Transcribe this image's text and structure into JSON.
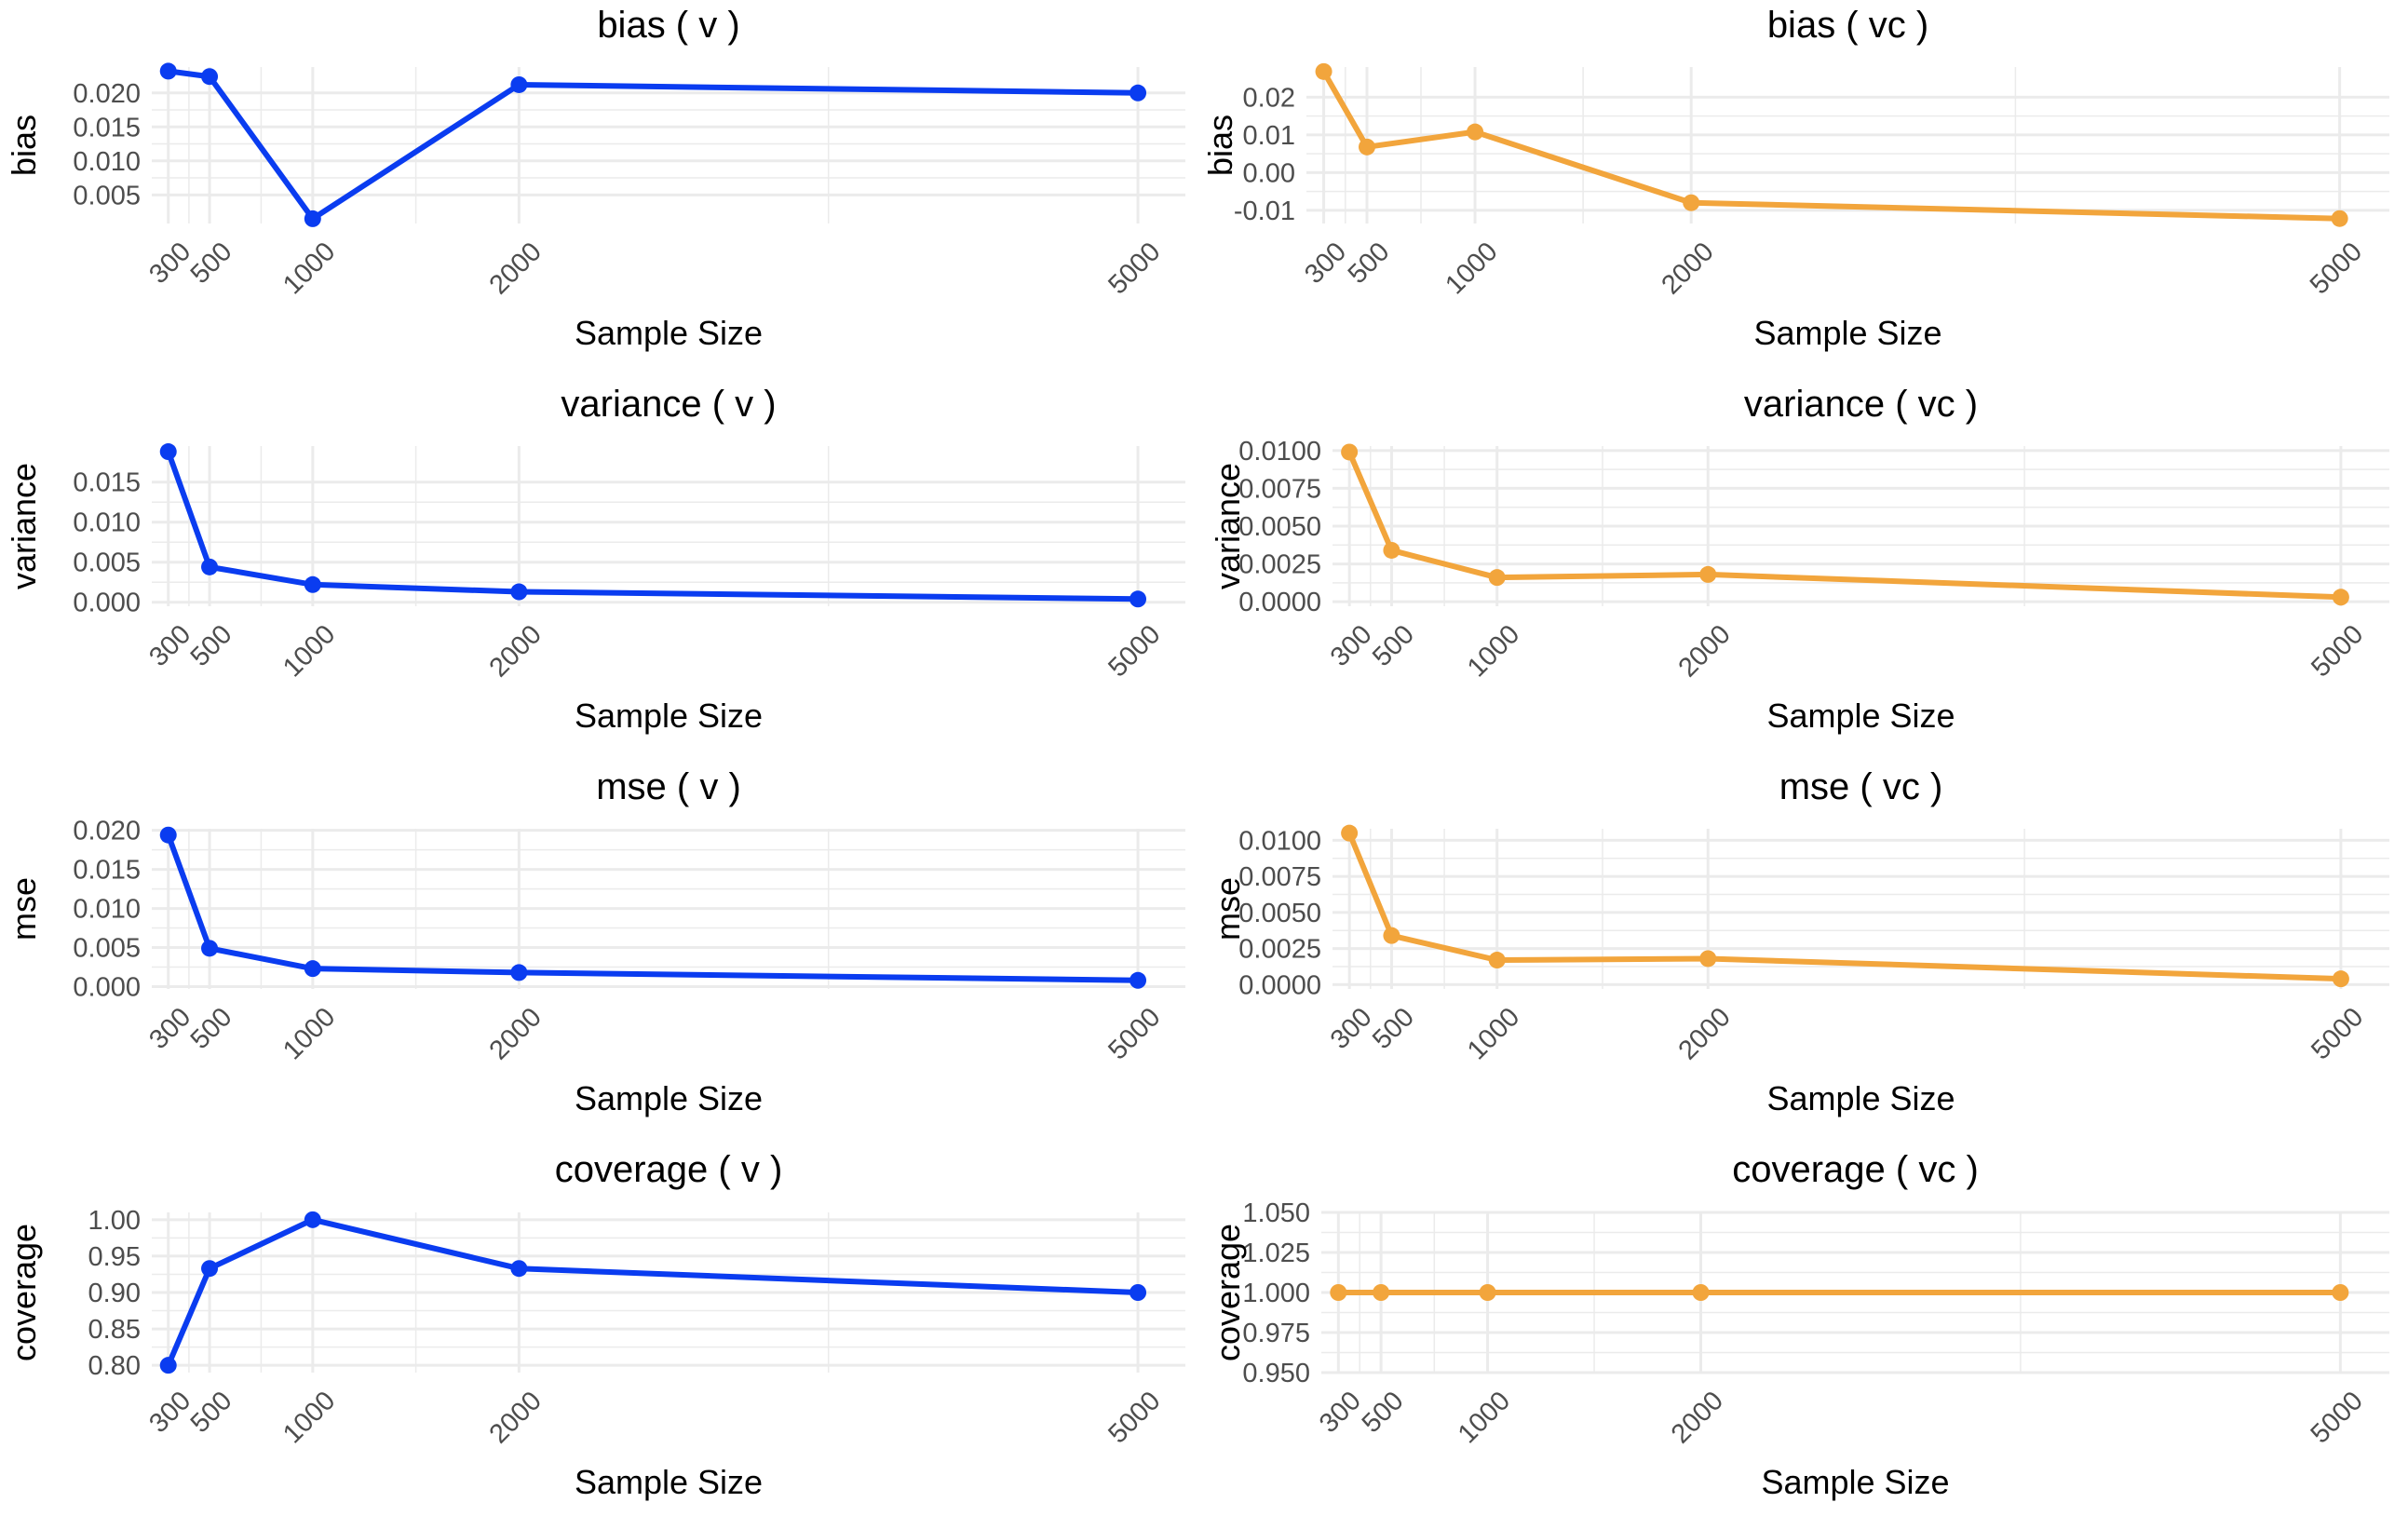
{
  "figure": {
    "x_label": "Sample Size",
    "colors": {
      "v": "#0a3cf0",
      "vc": "#f2a53c",
      "grid": "#ebebeb",
      "text": "#000000",
      "tick": "#4d4d4d"
    }
  },
  "chart_data": [
    {
      "id": "bias-v",
      "type": "line",
      "title": "bias ( v )",
      "xlabel": "Sample Size",
      "ylabel": "bias",
      "color_key": "v",
      "x": [
        300,
        500,
        1000,
        2000,
        5000
      ],
      "y": [
        0.0232,
        0.0224,
        0.0015,
        0.0212,
        0.02
      ],
      "ylim": [
        0.0008,
        0.0238
      ],
      "yticks": [
        0.005,
        0.01,
        0.015,
        0.02
      ],
      "ytick_labels": [
        "0.005",
        "0.010",
        "0.015",
        "0.020"
      ],
      "xticks": [
        300,
        500,
        1000,
        2000,
        5000
      ],
      "xtick_labels": [
        "300",
        "500",
        "1000",
        "2000",
        "5000"
      ],
      "xlim": [
        220,
        5230
      ],
      "grid": true
    },
    {
      "id": "bias-vc",
      "type": "line",
      "title": "bias ( vc )",
      "xlabel": "Sample Size",
      "ylabel": "bias",
      "color_key": "vc",
      "x": [
        300,
        500,
        1000,
        2000,
        5000
      ],
      "y": [
        0.0268,
        0.0068,
        0.0108,
        -0.008,
        -0.0122
      ],
      "ylim": [
        -0.0135,
        0.028
      ],
      "yticks": [
        -0.01,
        0.0,
        0.01,
        0.02
      ],
      "ytick_labels": [
        "-0.01",
        "0.00",
        "0.01",
        "0.02"
      ],
      "xticks": [
        300,
        500,
        1000,
        2000,
        5000
      ],
      "xtick_labels": [
        "300",
        "500",
        "1000",
        "2000",
        "5000"
      ],
      "xlim": [
        220,
        5230
      ],
      "grid": true
    },
    {
      "id": "variance-v",
      "type": "line",
      "title": "variance ( v )",
      "xlabel": "Sample Size",
      "ylabel": "variance",
      "color_key": "v",
      "x": [
        300,
        500,
        1000,
        2000,
        5000
      ],
      "y": [
        0.0188,
        0.0044,
        0.0022,
        0.0013,
        0.0004
      ],
      "ylim": [
        -0.0005,
        0.0195
      ],
      "yticks": [
        0.0,
        0.005,
        0.01,
        0.015
      ],
      "ytick_labels": [
        "0.000",
        "0.005",
        "0.010",
        "0.015"
      ],
      "xticks": [
        300,
        500,
        1000,
        2000,
        5000
      ],
      "xtick_labels": [
        "300",
        "500",
        "1000",
        "2000",
        "5000"
      ],
      "xlim": [
        220,
        5230
      ],
      "grid": true
    },
    {
      "id": "variance-vc",
      "type": "line",
      "title": "variance ( vc )",
      "xlabel": "Sample Size",
      "ylabel": "variance",
      "color_key": "vc",
      "x": [
        300,
        500,
        1000,
        2000,
        5000
      ],
      "y": [
        0.0099,
        0.0034,
        0.0016,
        0.0018,
        0.0003
      ],
      "ylim": [
        -0.0003,
        0.0103
      ],
      "yticks": [
        0.0,
        0.0025,
        0.005,
        0.0075,
        0.01
      ],
      "ytick_labels": [
        "0.0000",
        "0.0025",
        "0.0050",
        "0.0075",
        "0.0100"
      ],
      "xticks": [
        300,
        500,
        1000,
        2000,
        5000
      ],
      "xtick_labels": [
        "300",
        "500",
        "1000",
        "2000",
        "5000"
      ],
      "xlim": [
        220,
        5230
      ],
      "grid": true
    },
    {
      "id": "mse-v",
      "type": "line",
      "title": "mse ( v )",
      "xlabel": "Sample Size",
      "ylabel": "mse",
      "color_key": "v",
      "x": [
        300,
        500,
        1000,
        2000,
        5000
      ],
      "y": [
        0.0194,
        0.0049,
        0.0023,
        0.0018,
        0.0008
      ],
      "ylim": [
        -0.0003,
        0.0202
      ],
      "yticks": [
        0.0,
        0.005,
        0.01,
        0.015,
        0.02
      ],
      "ytick_labels": [
        "0.000",
        "0.005",
        "0.010",
        "0.015",
        "0.020"
      ],
      "xticks": [
        300,
        500,
        1000,
        2000,
        5000
      ],
      "xtick_labels": [
        "300",
        "500",
        "1000",
        "2000",
        "5000"
      ],
      "xlim": [
        220,
        5230
      ],
      "grid": true
    },
    {
      "id": "mse-vc",
      "type": "line",
      "title": "mse ( vc )",
      "xlabel": "Sample Size",
      "ylabel": "mse",
      "color_key": "vc",
      "x": [
        300,
        500,
        1000,
        2000,
        5000
      ],
      "y": [
        0.0105,
        0.0034,
        0.0017,
        0.0018,
        0.0004
      ],
      "ylim": [
        -0.0003,
        0.0108
      ],
      "yticks": [
        0.0,
        0.0025,
        0.005,
        0.0075,
        0.01
      ],
      "ytick_labels": [
        "0.0000",
        "0.0025",
        "0.0050",
        "0.0075",
        "0.0100"
      ],
      "xticks": [
        300,
        500,
        1000,
        2000,
        5000
      ],
      "xtick_labels": [
        "300",
        "500",
        "1000",
        "2000",
        "5000"
      ],
      "xlim": [
        220,
        5230
      ],
      "grid": true
    },
    {
      "id": "coverage-v",
      "type": "line",
      "title": "coverage ( v )",
      "xlabel": "Sample Size",
      "ylabel": "coverage",
      "color_key": "v",
      "x": [
        300,
        500,
        1000,
        2000,
        5000
      ],
      "y": [
        0.8,
        0.933,
        1.0,
        0.933,
        0.9
      ],
      "ylim": [
        0.79,
        1.01
      ],
      "yticks": [
        0.8,
        0.85,
        0.9,
        0.95,
        1.0
      ],
      "ytick_labels": [
        "0.80",
        "0.85",
        "0.90",
        "0.95",
        "1.00"
      ],
      "xticks": [
        300,
        500,
        1000,
        2000,
        5000
      ],
      "xtick_labels": [
        "300",
        "500",
        "1000",
        "2000",
        "5000"
      ],
      "xlim": [
        220,
        5230
      ],
      "grid": true
    },
    {
      "id": "coverage-vc",
      "type": "line",
      "title": "coverage ( vc )",
      "xlabel": "Sample Size",
      "ylabel": "coverage",
      "color_key": "vc",
      "x": [
        300,
        500,
        1000,
        2000,
        5000
      ],
      "y": [
        1.0,
        1.0,
        1.0,
        1.0,
        1.0
      ],
      "ylim": [
        0.95,
        1.05
      ],
      "yticks": [
        0.95,
        0.975,
        1.0,
        1.025,
        1.05
      ],
      "ytick_labels": [
        "0.950",
        "0.975",
        "1.000",
        "1.025",
        "1.050"
      ],
      "xticks": [
        300,
        500,
        1000,
        2000,
        5000
      ],
      "xtick_labels": [
        "300",
        "500",
        "1000",
        "2000",
        "5000"
      ],
      "xlim": [
        220,
        5230
      ],
      "grid": true
    }
  ]
}
